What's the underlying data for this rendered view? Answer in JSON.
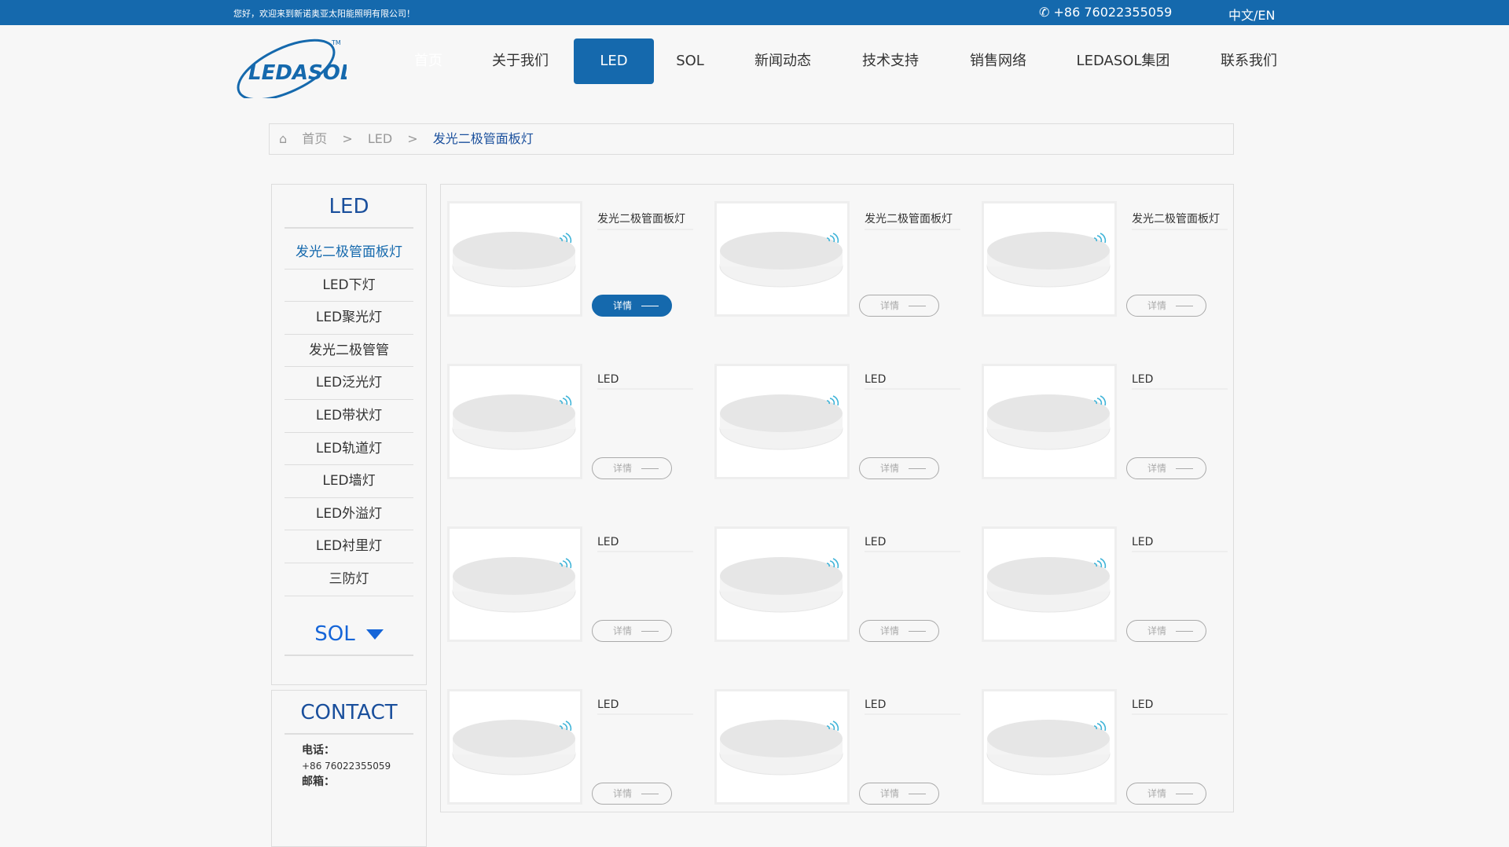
{
  "topbar": {
    "welcome": "您好，欢迎来到新诺奥亚太阳能照明有限公司！",
    "phone": "+86 76022355059",
    "lang": "中文/EN"
  },
  "logo": {
    "text": "LEDASOL",
    "tm": "TM"
  },
  "nav": [
    {
      "label": "首页"
    },
    {
      "label": "关于我们"
    },
    {
      "label": "LED",
      "active": true
    },
    {
      "label": "SOL"
    },
    {
      "label": "新闻动态"
    },
    {
      "label": "技术支持"
    },
    {
      "label": "销售网络"
    },
    {
      "label": "LEDASOL集团"
    },
    {
      "label": "联系我们"
    }
  ],
  "breadcrumb": {
    "home": "首页",
    "sep": ">",
    "level1": "LED",
    "current": "发光二极管面板灯"
  },
  "sidebar": {
    "title": "LED",
    "items": [
      "发光二极管面板灯",
      "LED下灯",
      "LED聚光灯",
      "发光二极管管",
      "LED泛光灯",
      "LED带状灯",
      "LED轨道灯",
      "LED墙灯",
      "LED外溢灯",
      "LED衬里灯",
      "三防灯"
    ],
    "sol": "SOL"
  },
  "contact": {
    "title": "CONTACT",
    "phone_label": "电话：",
    "phone": "+86 76022355059",
    "email_label": "邮箱："
  },
  "products": [
    {
      "title": "发光二极管面板灯",
      "button": "详情",
      "active": true
    },
    {
      "title": "发光二极管面板灯",
      "button": "详情"
    },
    {
      "title": "发光二极管面板灯",
      "button": "详情"
    },
    {
      "title": "LED",
      "button": "详情"
    },
    {
      "title": "LED",
      "button": "详情"
    },
    {
      "title": "LED",
      "button": "详情"
    },
    {
      "title": "LED",
      "button": "详情"
    },
    {
      "title": "LED",
      "button": "详情"
    },
    {
      "title": "LED",
      "button": "详情"
    },
    {
      "title": "LED",
      "button": "详情"
    },
    {
      "title": "LED",
      "button": "详情"
    },
    {
      "title": "LED",
      "button": "详情"
    }
  ],
  "colors": {
    "brand": "#1569ad",
    "title": "#1a4f9c",
    "sol": "#1565d8"
  }
}
